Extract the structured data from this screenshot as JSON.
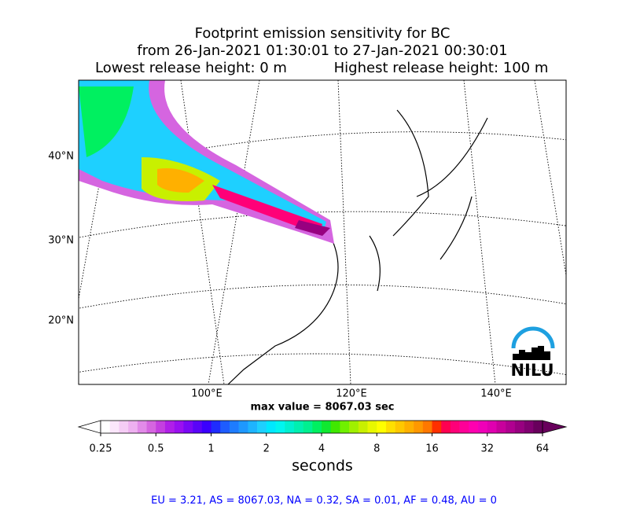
{
  "title": [
    "Footprint emission sensitivity for BC",
    "from 26-Jan-2021 01:30:01 to 27-Jan-2021 00:30:01",
    "Lowest release height: 0 m",
    "Highest release height: 100 m"
  ],
  "map": {
    "lat_labels": [
      "40°N",
      "30°N",
      "20°N"
    ],
    "lon_labels": [
      "100°E",
      "120°E",
      "140°E"
    ],
    "logo": "NILU"
  },
  "max_value": "max value = 8067.03 sec",
  "colorbar": {
    "label": "seconds",
    "log": true,
    "lim": [
      0.25,
      64
    ],
    "ticks": [
      0.25,
      0.5,
      1,
      2,
      4,
      8,
      16,
      32,
      64
    ],
    "colors": [
      "#ffffff",
      "#fbe6fb",
      "#f5ccf5",
      "#eeb0f0",
      "#e28ae8",
      "#d565e0",
      "#c43fe0",
      "#b01fe8",
      "#9a10f0",
      "#7a08f5",
      "#5a04f8",
      "#3a00ff",
      "#1f2cff",
      "#1e5cff",
      "#1e7cff",
      "#1e98ff",
      "#1eb4ff",
      "#1ed0ff",
      "#00e8ff",
      "#00f5f0",
      "#00f0d0",
      "#00f0b0",
      "#00f090",
      "#00f060",
      "#10e830",
      "#40e800",
      "#70f000",
      "#a0f000",
      "#c8f000",
      "#e8f800",
      "#ffff00",
      "#ffe000",
      "#ffc800",
      "#ffb000",
      "#ff9800",
      "#ff7800",
      "#ff3000",
      "#ff0050",
      "#ff0078",
      "#ff0098",
      "#ff00b0",
      "#f000b8",
      "#e000b0",
      "#c8009c",
      "#b00090",
      "#980080",
      "#800070",
      "#68005c"
    ]
  },
  "stats": "EU = 3.21,  AS = 8067.03,  NA = 0.32,  SA = 0.01,  AF = 0.48,  AU = 0"
}
